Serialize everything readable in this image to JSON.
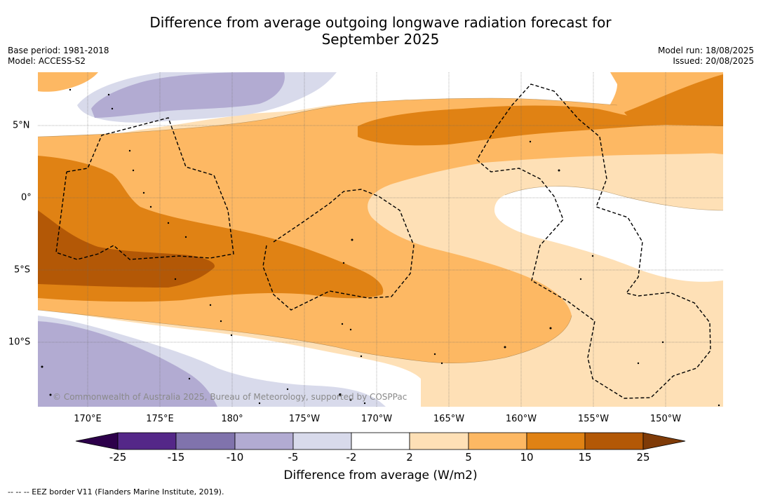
{
  "title": {
    "line1": "Difference from average outgoing longwave radiation forecast for",
    "line2": "September 2025"
  },
  "meta": {
    "base_period": "Base period: 1981-2018",
    "model": "Model: ACCESS-S2",
    "model_run": "Model run: 18/08/2025",
    "issued": "Issued: 20/08/2025"
  },
  "map": {
    "longitude_labels": [
      "170°E",
      "175°E",
      "180°",
      "175°W",
      "170°W",
      "165°W",
      "160°W",
      "155°W",
      "150°W"
    ],
    "latitude_labels": [
      "5°N",
      "0°",
      "5°S",
      "10°S"
    ],
    "copyright": "© Commonwealth of Australia 2025, Bureau of Meteorology, supported by COSPPac",
    "features": [
      "OLR anomaly contours",
      "EEZ boundaries (dashed)",
      "island coastlines"
    ]
  },
  "colorbar": {
    "title": "Difference from average (W/m2)",
    "tick_labels": [
      "-25",
      "-15",
      "-10",
      "-5",
      "-2",
      "2",
      "5",
      "10",
      "15",
      "25"
    ],
    "colors": [
      "#2d004b",
      "#542788",
      "#8073ac",
      "#b2abd2",
      "#d8daeb",
      "#ffffff",
      "#fee0b6",
      "#fdb863",
      "#e08214",
      "#b35806",
      "#7f3b08"
    ]
  },
  "footnote": "-- -- -- EEZ border V11 (Flanders Marine Institute, 2019)."
}
